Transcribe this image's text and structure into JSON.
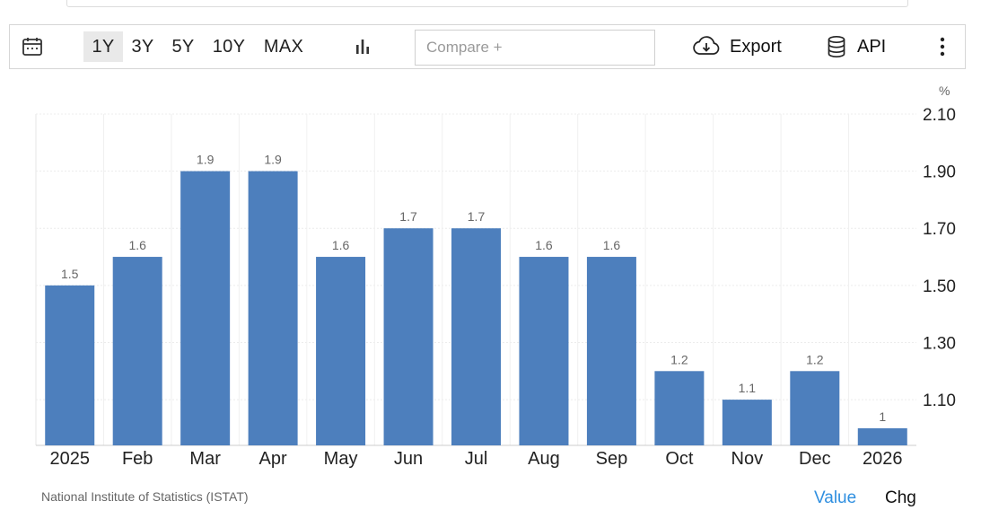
{
  "toolbar": {
    "ranges": [
      "1Y",
      "3Y",
      "5Y",
      "10Y",
      "MAX"
    ],
    "active_range": "1Y",
    "compare_placeholder": "Compare +",
    "export_label": "Export",
    "api_label": "API",
    "icons": [
      "calendar-icon",
      "bar-chart-icon",
      "cloud-download-icon",
      "database-icon",
      "more-vert-icon"
    ]
  },
  "unit_label": "%",
  "source": "National Institute of Statistics (ISTAT)",
  "footer": {
    "value_label": "Value",
    "chg_label": "Chg"
  },
  "colors": {
    "bar": "#4d7fbd",
    "value_link": "#2f8fe0",
    "grid": "#ececec"
  },
  "chart_data": {
    "type": "bar",
    "categories": [
      "2025",
      "Feb",
      "Mar",
      "Apr",
      "May",
      "Jun",
      "Jul",
      "Aug",
      "Sep",
      "Oct",
      "Nov",
      "Dec",
      "2026"
    ],
    "values": [
      1.5,
      1.6,
      1.9,
      1.9,
      1.6,
      1.7,
      1.7,
      1.6,
      1.6,
      1.2,
      1.1,
      1.2,
      1
    ],
    "data_labels": [
      "1.5",
      "1.6",
      "1.9",
      "1.9",
      "1.6",
      "1.7",
      "1.7",
      "1.6",
      "1.6",
      "1.2",
      "1.1",
      "1.2",
      "1"
    ],
    "yticks": [
      "2.10",
      "1.90",
      "1.70",
      "1.50",
      "1.30",
      "1.10"
    ],
    "ylim": [
      0.94,
      2.1
    ],
    "y_axis_side": "right",
    "grid": true,
    "legend": "none"
  }
}
